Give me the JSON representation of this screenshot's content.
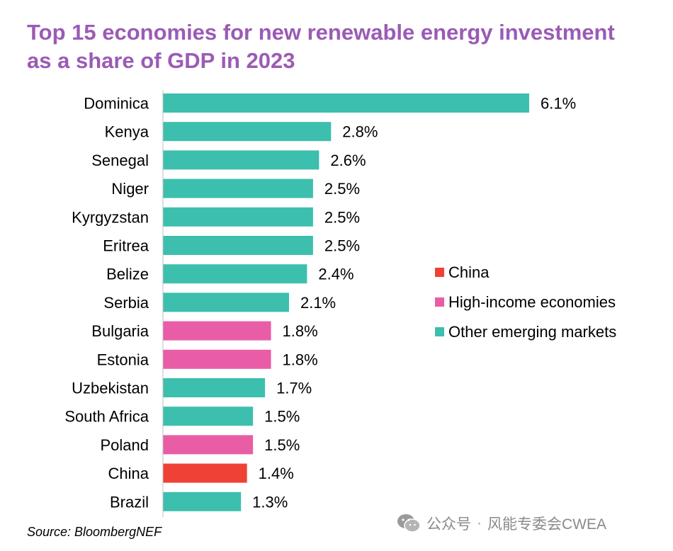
{
  "title_lines": [
    "Top 15 economies for new renewable energy investment",
    "as a share of GDP in 2023"
  ],
  "source": "Source: BloombergNEF",
  "watermark": {
    "account": "公众号",
    "sep": "·",
    "name": "风能专委会CWEA",
    "icon": "wechat-icon"
  },
  "colors": {
    "title": "#9b5bb5",
    "China": "#ef4136",
    "High-income economies": "#e95da6",
    "Other emerging markets": "#3dbfae"
  },
  "chart_data": {
    "type": "bar",
    "orientation": "horizontal",
    "title": "Top 15 economies for new renewable energy investment as a share of GDP in 2023",
    "categories": [
      "Dominica",
      "Kenya",
      "Senegal",
      "Niger",
      "Kyrgyzstan",
      "Eritrea",
      "Belize",
      "Serbia",
      "Bulgaria",
      "Estonia",
      "Uzbekistan",
      "South Africa",
      "Poland",
      "China",
      "Brazil"
    ],
    "values": [
      6.1,
      2.8,
      2.6,
      2.5,
      2.5,
      2.5,
      2.4,
      2.1,
      1.8,
      1.8,
      1.7,
      1.5,
      1.5,
      1.4,
      1.3
    ],
    "labels": [
      "6.1%",
      "2.8%",
      "2.6%",
      "2.5%",
      "2.5%",
      "2.5%",
      "2.4%",
      "2.1%",
      "1.8%",
      "1.8%",
      "1.7%",
      "1.5%",
      "1.5%",
      "1.4%",
      "1.3%"
    ],
    "groups": [
      "Other emerging markets",
      "Other emerging markets",
      "Other emerging markets",
      "Other emerging markets",
      "Other emerging markets",
      "Other emerging markets",
      "Other emerging markets",
      "Other emerging markets",
      "High-income economies",
      "High-income economies",
      "Other emerging markets",
      "Other emerging markets",
      "High-income economies",
      "China",
      "Other emerging markets"
    ],
    "legend": [
      "China",
      "High-income economies",
      "Other emerging markets"
    ],
    "legend_position": "right",
    "xlim": [
      0,
      6.1
    ],
    "unit": "%",
    "grid": false
  }
}
